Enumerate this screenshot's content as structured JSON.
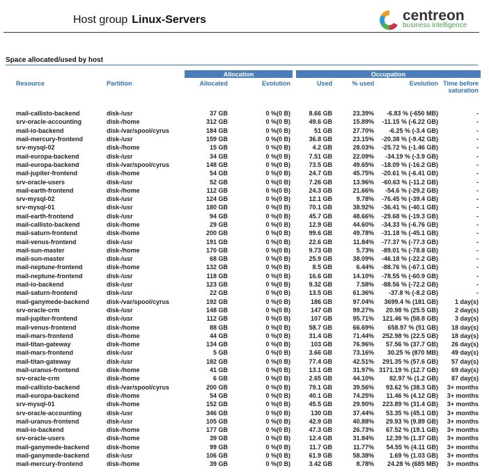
{
  "header": {
    "prefix": "Host group",
    "group": "Linux-Servers",
    "logo_name": "centreon",
    "logo_tagline": "business intelligence"
  },
  "section_title": "Space allocated/used by host",
  "table": {
    "groups": [
      "Allocation",
      "Occupation"
    ],
    "columns": [
      "Resource",
      "Partition",
      "Allocated",
      "Evolution",
      "Used",
      "% used",
      "Evolution",
      "Time before saturation"
    ],
    "rows": [
      [
        "mail-callisto-backend",
        "disk-/usr",
        "37 GB",
        "0 %(0 B)",
        "8.66 GB",
        "23.39%",
        "-6.83 % (-650 MB)",
        "-"
      ],
      [
        "srv-oracle-accounting",
        "disk-/home",
        "312 GB",
        "0 %(0 B)",
        "49.6 GB",
        "15.89%",
        "-11.15 % (-6.22 GB)",
        "-"
      ],
      [
        "mail-io-backend",
        "disk-/var/spool/cyrus",
        "184 GB",
        "0 %(0 B)",
        "51 GB",
        "27.70%",
        "-6.25 % (-3.4 GB)",
        "-"
      ],
      [
        "mail-mercury-frontend",
        "disk-/usr",
        "159 GB",
        "0 %(0 B)",
        "36.8 GB",
        "23.15%",
        "-20.38 % (-9.42 GB)",
        "-"
      ],
      [
        "srv-mysql-02",
        "disk-/home",
        "15 GB",
        "0 %(0 B)",
        "4.2 GB",
        "28.03%",
        "-25.72 % (-1.46 GB)",
        "-"
      ],
      [
        "mail-europa-backend",
        "disk-/usr",
        "34 GB",
        "0 %(0 B)",
        "7.51 GB",
        "22.09%",
        "-34.19 % (-3.9 GB)",
        "-"
      ],
      [
        "mail-europa-backend",
        "disk-/var/spool/cyrus",
        "148 GB",
        "0 %(0 B)",
        "73.5 GB",
        "49.65%",
        "-18.09 % (-16.2 GB)",
        "-"
      ],
      [
        "mail-jupiter-frontend",
        "disk-/home",
        "54 GB",
        "0 %(0 B)",
        "24.7 GB",
        "45.75%",
        "-20.61 % (-6.41 GB)",
        "-"
      ],
      [
        "srv-oracle-users",
        "disk-/usr",
        "52 GB",
        "0 %(0 B)",
        "7.26 GB",
        "13.96%",
        "-60.63 % (-11.2 GB)",
        "-"
      ],
      [
        "mail-earth-frontend",
        "disk-/home",
        "112 GB",
        "0 %(0 B)",
        "24.3 GB",
        "21.66%",
        "-54.6 % (-29.2 GB)",
        "-"
      ],
      [
        "srv-mysql-02",
        "disk-/usr",
        "124 GB",
        "0 %(0 B)",
        "12.1 GB",
        "9.78%",
        "-76.45 % (-39.4 GB)",
        "-"
      ],
      [
        "srv-mysql-01",
        "disk-/usr",
        "180 GB",
        "0 %(0 B)",
        "70.1 GB",
        "38.92%",
        "-36.41 % (-40.1 GB)",
        "-"
      ],
      [
        "mail-earth-frontend",
        "disk-/usr",
        "94 GB",
        "0 %(0 B)",
        "45.7 GB",
        "48.66%",
        "-29.68 % (-19.3 GB)",
        "-"
      ],
      [
        "mail-callisto-backend",
        "disk-/home",
        "29 GB",
        "0 %(0 B)",
        "12.9 GB",
        "44.60%",
        "-34.33 % (-6.76 GB)",
        "-"
      ],
      [
        "mail-saturn-frontend",
        "disk-/home",
        "200 GB",
        "0 %(0 B)",
        "99.6 GB",
        "49.78%",
        "-31.18 % (-45.1 GB)",
        "-"
      ],
      [
        "mail-venus-frontend",
        "disk-/usr",
        "191 GB",
        "0 %(0 B)",
        "22.6 GB",
        "11.84%",
        "-77.37 % (-77.3 GB)",
        "-"
      ],
      [
        "mail-sun-master",
        "disk-/home",
        "170 GB",
        "0 %(0 B)",
        "9.73 GB",
        "5.73%",
        "-89.01 % (-78.8 GB)",
        "-"
      ],
      [
        "mail-sun-master",
        "disk-/usr",
        "68 GB",
        "0 %(0 B)",
        "25.9 GB",
        "38.09%",
        "-46.18 % (-22.2 GB)",
        "-"
      ],
      [
        "mail-neptune-frontend",
        "disk-/home",
        "132 GB",
        "0 %(0 B)",
        "8.5 GB",
        "6.44%",
        "-88.76 % (-67.1 GB)",
        "-"
      ],
      [
        "mail-neptune-frontend",
        "disk-/usr",
        "118 GB",
        "0 %(0 B)",
        "16.6 GB",
        "14.10%",
        "-78.55 % (-60.9 GB)",
        "-"
      ],
      [
        "mail-io-backend",
        "disk-/usr",
        "123 GB",
        "0 %(0 B)",
        "9.32 GB",
        "7.58%",
        "-88.56 % (-72.2 GB)",
        "-"
      ],
      [
        "mail-saturn-frontend",
        "disk-/usr",
        "22 GB",
        "0 %(0 B)",
        "13.5 GB",
        "61.36%",
        "-37.8 % (-8.2 GB)",
        "-"
      ],
      [
        "mail-ganymede-backend",
        "disk-/var/spool/cyrus",
        "192 GB",
        "0 %(0 B)",
        "186 GB",
        "97.04%",
        "3699.4 % (181 GB)",
        "1 day(s)"
      ],
      [
        "srv-oracle-crm",
        "disk-/usr",
        "148 GB",
        "0 %(0 B)",
        "147 GB",
        "99.27%",
        "20.98 % (25.5 GB)",
        "2 day(s)"
      ],
      [
        "mail-jupiter-frontend",
        "disk-/usr",
        "112 GB",
        "0 %(0 B)",
        "107 GB",
        "95.71%",
        "121.46 % (58.8 GB)",
        "3 day(s)"
      ],
      [
        "mail-venus-frontend",
        "disk-/home",
        "88 GB",
        "0 %(0 B)",
        "58.7 GB",
        "66.69%",
        "658.97 % (51 GB)",
        "18 day(s)"
      ],
      [
        "mail-mars-frontend",
        "disk-/home",
        "44 GB",
        "0 %(0 B)",
        "31.4 GB",
        "71.44%",
        "252.98 % (22.5 GB)",
        "18 day(s)"
      ],
      [
        "mail-titan-gateway",
        "disk-/home",
        "134 GB",
        "0 %(0 B)",
        "103 GB",
        "76.96%",
        "57.56 % (37.7 GB)",
        "26 day(s)"
      ],
      [
        "mail-mars-frontend",
        "disk-/usr",
        "5 GB",
        "0 %(0 B)",
        "3.66 GB",
        "73.16%",
        "30.25 % (870 MB)",
        "49 day(s)"
      ],
      [
        "mail-titan-gateway",
        "disk-/usr",
        "182 GB",
        "0 %(0 B)",
        "77.4 GB",
        "42.51%",
        "291.35 % (57.6 GB)",
        "57 day(s)"
      ],
      [
        "mail-uranus-frontend",
        "disk-/home",
        "41 GB",
        "0 %(0 B)",
        "13.1 GB",
        "31.97%",
        "3171.19 % (12.7 GB)",
        "69 day(s)"
      ],
      [
        "srv-oracle-crm",
        "disk-/home",
        "6 GB",
        "0 %(0 B)",
        "2.65 GB",
        "44.10%",
        "82.97 % (1.2 GB)",
        "87 day(s)"
      ],
      [
        "mail-callisto-backend",
        "disk-/var/spool/cyrus",
        "200 GB",
        "0 %(0 B)",
        "79.1 GB",
        "39.56%",
        "93.62 % (38.3 GB)",
        "3+ months"
      ],
      [
        "mail-europa-backend",
        "disk-/home",
        "54 GB",
        "0 %(0 B)",
        "40.1 GB",
        "74.25%",
        "11.46 % (4.12 GB)",
        "3+ months"
      ],
      [
        "srv-mysql-01",
        "disk-/home",
        "152 GB",
        "0 %(0 B)",
        "45.5 GB",
        "29.90%",
        "223.89 % (31.4 GB)",
        "3+ months"
      ],
      [
        "srv-oracle-accounting",
        "disk-/usr",
        "346 GB",
        "0 %(0 B)",
        "130 GB",
        "37.44%",
        "53.35 % (45.1 GB)",
        "3+ months"
      ],
      [
        "mail-uranus-frontend",
        "disk-/usr",
        "105 GB",
        "0 %(0 B)",
        "42.9 GB",
        "40.88%",
        "29.93 % (9.89 GB)",
        "3+ months"
      ],
      [
        "mail-io-backend",
        "disk-/home",
        "177 GB",
        "0 %(0 B)",
        "47.3 GB",
        "26.73%",
        "67.52 % (19.1 GB)",
        "3+ months"
      ],
      [
        "srv-oracle-users",
        "disk-/home",
        "39 GB",
        "0 %(0 B)",
        "12.4 GB",
        "31.84%",
        "12.39 % (1.37 GB)",
        "3+ months"
      ],
      [
        "mail-ganymede-backend",
        "disk-/home",
        "99 GB",
        "0 %(0 B)",
        "11.7 GB",
        "11.77%",
        "54.55 % (4.11 GB)",
        "3+ months"
      ],
      [
        "mail-ganymede-backend",
        "disk-/usr",
        "106 GB",
        "0 %(0 B)",
        "61.9 GB",
        "58.38%",
        "1.69 % (1.03 GB)",
        "3+ months"
      ],
      [
        "mail-mercury-frontend",
        "disk-/home",
        "39 GB",
        "0 %(0 B)",
        "3.42 GB",
        "8.78%",
        "24.28 % (685 MB)",
        "3+ months"
      ]
    ]
  }
}
